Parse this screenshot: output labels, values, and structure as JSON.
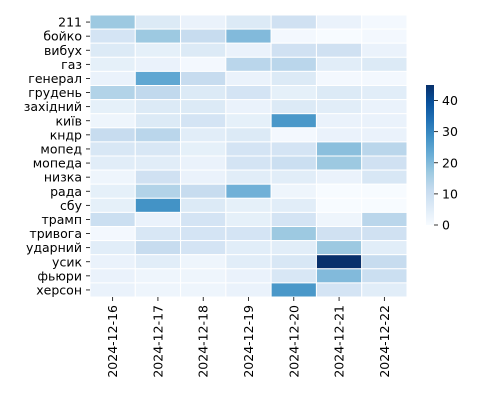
{
  "chart_data": {
    "type": "heatmap",
    "title": "",
    "xlabel": "",
    "ylabel": "",
    "x_categories": [
      "2024-12-16",
      "2024-12-17",
      "2024-12-18",
      "2024-12-19",
      "2024-12-20",
      "2024-12-21",
      "2024-12-22"
    ],
    "y_categories": [
      "211",
      "бойко",
      "вибух",
      "газ",
      "генерал",
      "грудень",
      "західний",
      "київ",
      "кндр",
      "мопед",
      "мопеда",
      "низка",
      "рада",
      "сбу",
      "трамп",
      "тривога",
      "ударний",
      "усик",
      "фьюри",
      "херсон"
    ],
    "values": [
      [
        17,
        6,
        3,
        6,
        9,
        3,
        1
      ],
      [
        8,
        17,
        11,
        20,
        1,
        0,
        1
      ],
      [
        6,
        4,
        6,
        3,
        9,
        9,
        3
      ],
      [
        4,
        3,
        1,
        13,
        13,
        5,
        6
      ],
      [
        3,
        24,
        11,
        3,
        6,
        1,
        1
      ],
      [
        14,
        12,
        6,
        8,
        4,
        6,
        5
      ],
      [
        4,
        6,
        6,
        3,
        6,
        5,
        3
      ],
      [
        2,
        6,
        8,
        4,
        27,
        3,
        3
      ],
      [
        11,
        13,
        5,
        6,
        1,
        3,
        3
      ],
      [
        7,
        7,
        4,
        8,
        8,
        19,
        13
      ],
      [
        5,
        5,
        3,
        8,
        10,
        17,
        9
      ],
      [
        2,
        9,
        3,
        5,
        5,
        3,
        7
      ],
      [
        4,
        14,
        11,
        22,
        2,
        0,
        0
      ],
      [
        4,
        28,
        6,
        4,
        5,
        0,
        0
      ],
      [
        10,
        3,
        8,
        4,
        8,
        2,
        13
      ],
      [
        1,
        7,
        8,
        8,
        17,
        9,
        9
      ],
      [
        5,
        11,
        8,
        5,
        5,
        17,
        5
      ],
      [
        3,
        5,
        2,
        5,
        7,
        45,
        11
      ],
      [
        3,
        2,
        2,
        3,
        7,
        20,
        10
      ],
      [
        3,
        2,
        2,
        3,
        27,
        8,
        5
      ]
    ],
    "colorbar": {
      "min": 0,
      "max": 45,
      "ticks": [
        0,
        10,
        20,
        30,
        40
      ],
      "colormap": "Blues"
    },
    "grid": false,
    "legend": "colorbar-right"
  }
}
